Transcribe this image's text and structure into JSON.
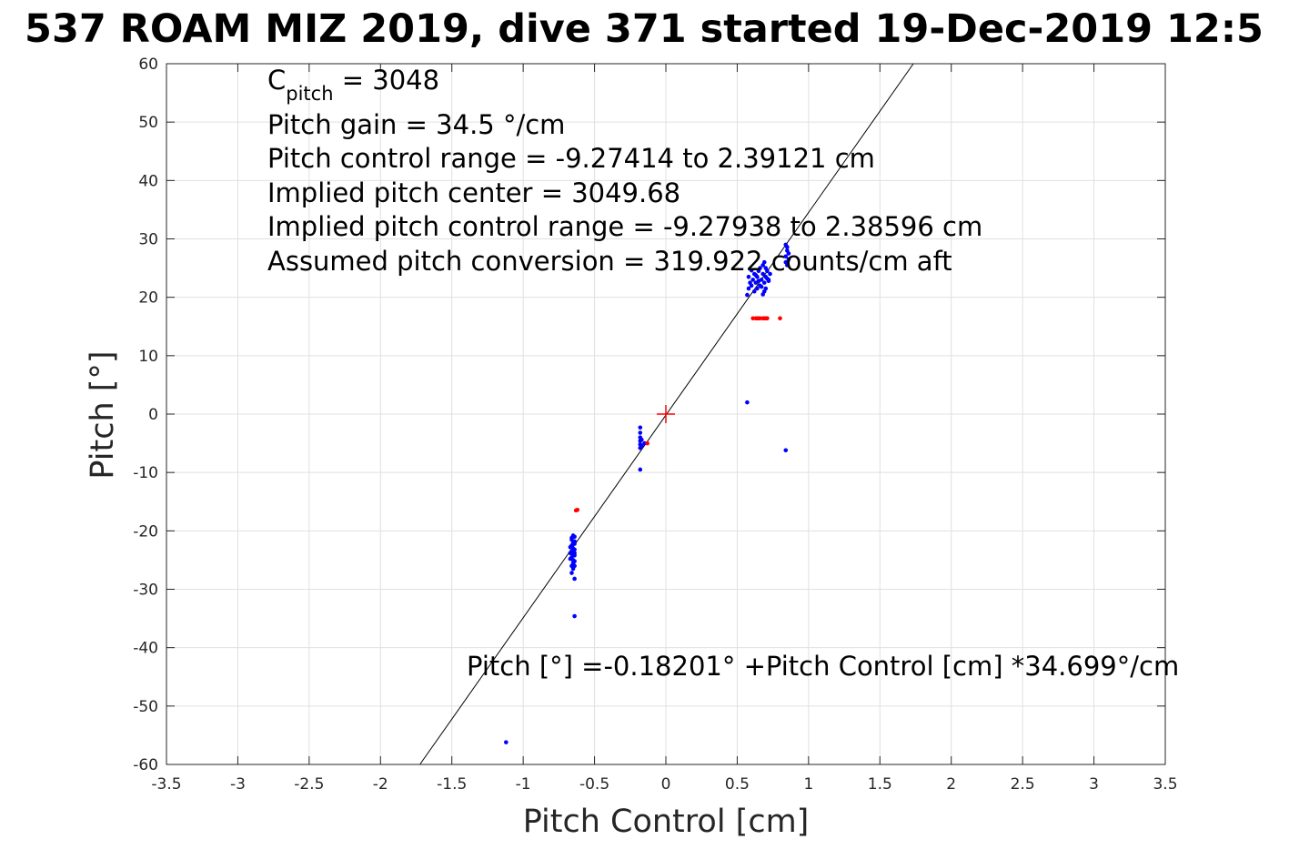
{
  "chart_data": {
    "type": "scatter",
    "title": "537 ROAM MIZ 2019, dive 371 started 19-Dec-2019 12:5",
    "xlabel": "Pitch Control [cm]",
    "ylabel": "Pitch [°]",
    "xlim": [
      -3.5,
      3.5
    ],
    "ylim": [
      -60,
      60
    ],
    "xticks": [
      -3.5,
      -3,
      -2.5,
      -2,
      -1.5,
      -1,
      -0.5,
      0,
      0.5,
      1,
      1.5,
      2,
      2.5,
      3,
      3.5
    ],
    "yticks": [
      -60,
      -50,
      -40,
      -30,
      -20,
      -10,
      0,
      10,
      20,
      30,
      40,
      50,
      60
    ],
    "xtick_labels": [
      "-3.5",
      "-3",
      "-2.5",
      "-2",
      "-1.5",
      "-1",
      "-0.5",
      "0",
      "0.5",
      "1",
      "1.5",
      "2",
      "2.5",
      "3",
      "3.5"
    ],
    "ytick_labels": [
      "-60",
      "-50",
      "-40",
      "-30",
      "-20",
      "-10",
      "0",
      "10",
      "20",
      "30",
      "40",
      "50",
      "60"
    ],
    "grid": true,
    "fit_line": {
      "intercept": -0.18201,
      "slope": 34.699,
      "color": "#000000"
    },
    "center_marker": {
      "x": 0,
      "y": 0,
      "color": "#ff0000"
    },
    "annotations": {
      "c_pitch_base": "C",
      "c_pitch_sub": "pitch",
      "c_pitch_value": " = 3048",
      "pitch_gain": "Pitch gain = 34.5 °/cm",
      "pitch_control_range": "Pitch control range = -9.27414 to 2.39121 cm",
      "implied_pitch_center": "Implied pitch center = 3049.68",
      "implied_pitch_control_range": "Implied pitch control range = -9.27938 to 2.38596 cm",
      "assumed_pitch_conversion": "Assumed pitch conversion = 319.922 counts/cm aft",
      "fit_equation": "Pitch [°] =-0.18201° +Pitch Control [cm] *34.699°/cm"
    },
    "series": [
      {
        "color": "#0000ff",
        "points": [
          [
            -0.66,
            -21.5
          ],
          [
            -0.65,
            -22.0
          ],
          [
            -0.66,
            -22.5
          ],
          [
            -0.65,
            -23.0
          ],
          [
            -0.66,
            -23.5
          ],
          [
            -0.65,
            -24.0
          ],
          [
            -0.66,
            -24.5
          ],
          [
            -0.65,
            -25.0
          ],
          [
            -0.64,
            -21.0
          ],
          [
            -0.64,
            -22.2
          ],
          [
            -0.64,
            -23.2
          ],
          [
            -0.64,
            -24.2
          ],
          [
            -0.64,
            -25.2
          ],
          [
            -0.64,
            -26.0
          ],
          [
            -0.64,
            -21.8
          ],
          [
            -0.64,
            -23.8
          ],
          [
            -0.65,
            -25.5
          ],
          [
            -0.66,
            -26.0
          ],
          [
            -0.67,
            -22.8
          ],
          [
            -0.67,
            -23.8
          ],
          [
            -0.67,
            -24.8
          ],
          [
            -0.65,
            -26.5
          ],
          [
            -0.66,
            -27.2
          ],
          [
            -0.64,
            -28.2
          ],
          [
            -0.65,
            -20.8
          ],
          [
            -0.66,
            -21.2
          ],
          [
            -0.64,
            -34.6
          ],
          [
            -0.18,
            -2.3
          ],
          [
            -0.18,
            -3.2
          ],
          [
            -0.18,
            -4.0
          ],
          [
            -0.18,
            -4.6
          ],
          [
            -0.18,
            -5.2
          ],
          [
            -0.18,
            -5.8
          ],
          [
            -0.17,
            -4.4
          ],
          [
            -0.17,
            -5.4
          ],
          [
            -0.15,
            -5.0
          ],
          [
            -0.18,
            -9.5
          ],
          [
            0.58,
            23.5
          ],
          [
            0.59,
            22.5
          ],
          [
            0.58,
            21.5
          ],
          [
            0.6,
            22.0
          ],
          [
            0.61,
            23.0
          ],
          [
            0.62,
            24.0
          ],
          [
            0.63,
            22.5
          ],
          [
            0.64,
            23.5
          ],
          [
            0.65,
            24.5
          ],
          [
            0.66,
            22.0
          ],
          [
            0.67,
            23.0
          ],
          [
            0.68,
            24.0
          ],
          [
            0.69,
            22.5
          ],
          [
            0.7,
            23.5
          ],
          [
            0.71,
            24.5
          ],
          [
            0.72,
            23.0
          ],
          [
            0.73,
            24.0
          ],
          [
            0.69,
            21.0
          ],
          [
            0.68,
            20.5
          ],
          [
            0.7,
            21.5
          ],
          [
            0.66,
            25.0
          ],
          [
            0.68,
            25.5
          ],
          [
            0.7,
            25.0
          ],
          [
            0.64,
            21.5
          ],
          [
            0.62,
            21.0
          ],
          [
            0.71,
            23.2
          ],
          [
            0.72,
            22.8
          ],
          [
            0.67,
            21.8
          ],
          [
            0.65,
            22.8
          ],
          [
            0.63,
            23.8
          ],
          [
            0.57,
            20.4
          ],
          [
            0.6,
            24.6
          ],
          [
            0.69,
            26.0
          ],
          [
            0.84,
            29.0
          ],
          [
            0.85,
            28.0
          ],
          [
            0.84,
            27.0
          ],
          [
            0.86,
            26.5
          ],
          [
            0.85,
            25.5
          ],
          [
            0.84,
            26.0
          ],
          [
            0.86,
            27.5
          ],
          [
            0.85,
            28.6
          ],
          [
            0.57,
            2.0
          ],
          [
            0.84,
            -6.2
          ],
          [
            -1.12,
            -56.2
          ]
        ]
      },
      {
        "color": "#ff0000",
        "points": [
          [
            0.61,
            16.4
          ],
          [
            0.63,
            16.4
          ],
          [
            0.64,
            16.4
          ],
          [
            0.65,
            16.4
          ],
          [
            0.66,
            16.4
          ],
          [
            0.68,
            16.4
          ],
          [
            0.69,
            16.4
          ],
          [
            0.7,
            16.4
          ],
          [
            0.71,
            16.4
          ],
          [
            0.8,
            16.4
          ],
          [
            -0.62,
            -16.4
          ],
          [
            -0.63,
            -16.5
          ],
          [
            -0.13,
            -5.0
          ]
        ]
      }
    ]
  }
}
